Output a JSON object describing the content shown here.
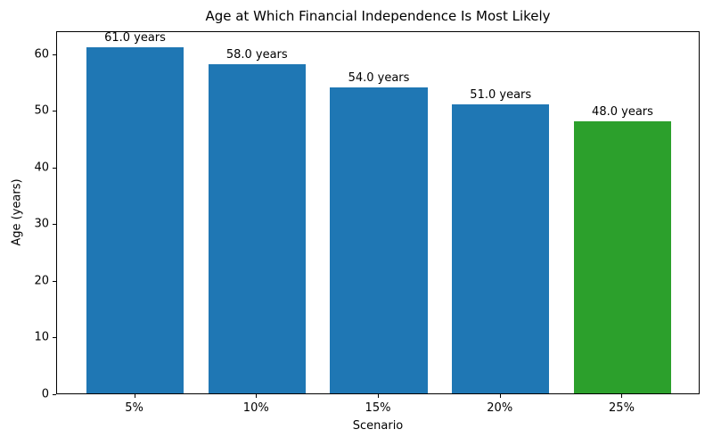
{
  "chart_data": {
    "type": "bar",
    "title": "Age at Which Financial Independence Is Most Likely",
    "xlabel": "Scenario",
    "ylabel": "Age (years)",
    "categories": [
      "5%",
      "10%",
      "15%",
      "20%",
      "25%"
    ],
    "values": [
      61.0,
      58.0,
      54.0,
      51.0,
      48.0
    ],
    "bar_labels": [
      "61.0 years",
      "58.0 years",
      "54.0 years",
      "51.0 years",
      "48.0 years"
    ],
    "bar_colors": [
      "#1f77b4",
      "#1f77b4",
      "#1f77b4",
      "#1f77b4",
      "#2ca02c"
    ],
    "yticks": [
      0,
      10,
      20,
      30,
      40,
      50,
      60
    ],
    "ylim": [
      0,
      64.05
    ],
    "grid": false,
    "legend": "none",
    "frame_color": "#000000",
    "text_color": "#000000",
    "background_color": "#ffffff"
  }
}
